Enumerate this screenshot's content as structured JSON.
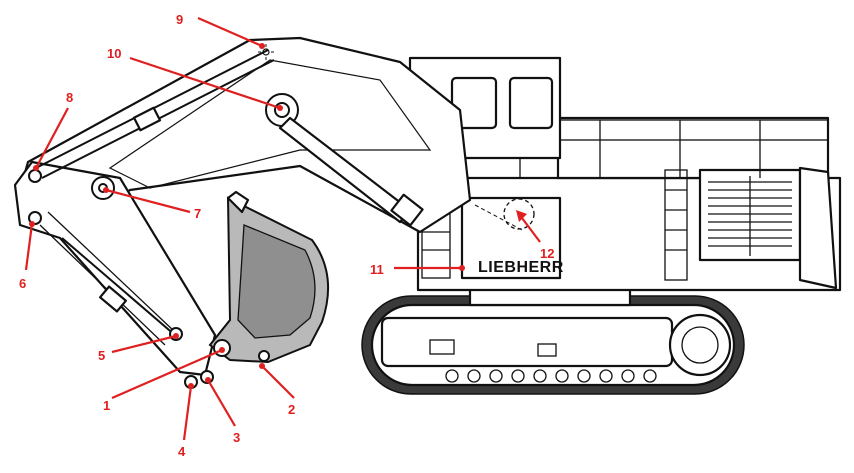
{
  "brand": "LIEBHERR",
  "callouts": [
    {
      "id": "1",
      "label": "1"
    },
    {
      "id": "2",
      "label": "2"
    },
    {
      "id": "3",
      "label": "3"
    },
    {
      "id": "4",
      "label": "4"
    },
    {
      "id": "5",
      "label": "5"
    },
    {
      "id": "6",
      "label": "6"
    },
    {
      "id": "7",
      "label": "7"
    },
    {
      "id": "8",
      "label": "8"
    },
    {
      "id": "9",
      "label": "9"
    },
    {
      "id": "10",
      "label": "10"
    },
    {
      "id": "11",
      "label": "11"
    },
    {
      "id": "12",
      "label": "12"
    }
  ],
  "colors": {
    "callout": "#e02020",
    "outline": "#111111",
    "bucket": "#b9b9b9"
  }
}
